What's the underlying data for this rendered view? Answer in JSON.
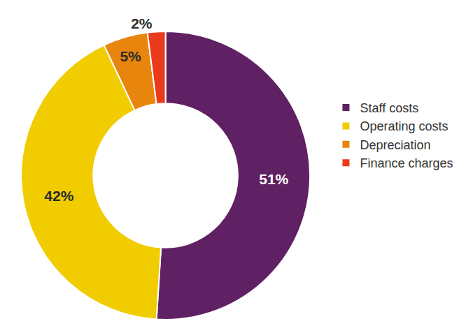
{
  "chart_data": {
    "type": "pie",
    "categories": [
      "Staff costs",
      "Operating costs",
      "Depreciation",
      "Finance charges"
    ],
    "values": [
      51,
      42,
      5,
      2
    ],
    "value_labels": [
      "51%",
      "42%",
      "5%",
      "2%"
    ],
    "colors": [
      "#5f2163",
      "#f0cc00",
      "#e8850c",
      "#ea3a1c"
    ],
    "data_labels": true,
    "legend": "right"
  }
}
